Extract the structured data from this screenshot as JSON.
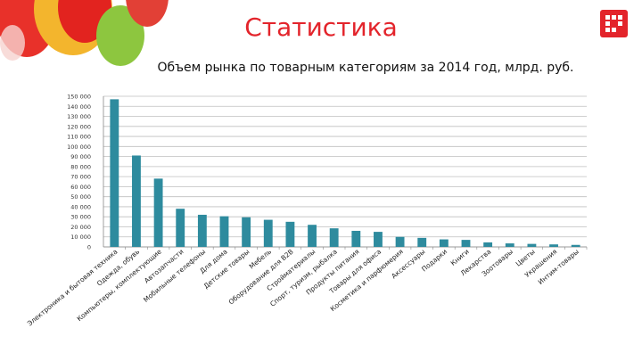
{
  "header": {
    "title": "Статистика",
    "subtitle": "Объем рынка по товарным категориям за 2014 год, млрд. руб."
  },
  "colors": {
    "bar": "#2e8b9e",
    "title": "#e3242b",
    "logo": "#e3242b",
    "grid": "#bfbfbf"
  },
  "chart_data": {
    "type": "bar",
    "title": "Объем рынка по товарным категориям за 2014 год, млрд. руб.",
    "xlabel": "",
    "ylabel": "",
    "ylim": [
      0,
      150000
    ],
    "yticks": [
      "0",
      "10 000",
      "20 000",
      "30 000",
      "40 000",
      "50 000",
      "60 000",
      "70 000",
      "80 000",
      "90 000",
      "100 000",
      "110 000",
      "120 000",
      "130 000",
      "140 000",
      "150 000"
    ],
    "grid": true,
    "categories": [
      "Электроника и бытовая техника",
      "Одежда, обувь",
      "Компьютеры, комплектующие",
      "Автозапчасти",
      "Мобильные телефоны",
      "Для дома",
      "Детские товары",
      "Мебель",
      "Оборудование для B2B",
      "Стройматериалы",
      "Спорт, туризм, рыбалка",
      "Продукты питания",
      "Товары для офиса",
      "Косметика и парфюмерия",
      "Аксессуары",
      "Подарки",
      "Книги",
      "Лекарства",
      "Зоотовары",
      "Цветы",
      "Украшения",
      "Интим-товары"
    ],
    "values": [
      147000,
      91000,
      68000,
      38000,
      32000,
      30500,
      29500,
      27000,
      25000,
      22000,
      18500,
      16000,
      15000,
      10000,
      9000,
      7500,
      7000,
      4500,
      3500,
      3000,
      2500,
      2000
    ]
  }
}
